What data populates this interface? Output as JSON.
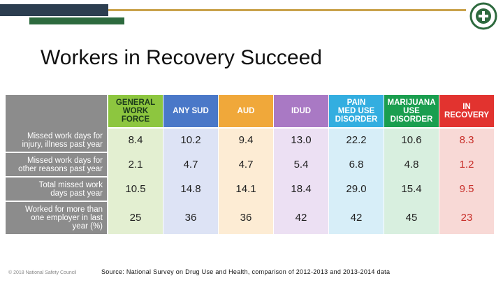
{
  "slide": {
    "title": "Workers in Recovery Succeed",
    "copyright": "© 2018 National Safety Council",
    "source": "Source: National Survey on Drug Use and Health, comparison of 2012-2013 and 2013-2014 data",
    "logo_text": "NATIONAL SAFETY COUNCIL"
  },
  "colors": {
    "navy": "#2c3e50",
    "green": "#2d6a3e",
    "gold": "#c9a24b",
    "label_panel": "#8c8c8c"
  },
  "table": {
    "columns": [
      {
        "label": "GENERAL\nWORK\nFORCE",
        "head_bg": "#8dc63f",
        "head_fg": "#1b3a1b",
        "body_bg": "#e3efd1"
      },
      {
        "label": "ANY SUD",
        "head_bg": "#4a78c8",
        "head_fg": "#ffffff",
        "body_bg": "#dde3f5"
      },
      {
        "label": "AUD",
        "head_bg": "#f0a83a",
        "head_fg": "#ffffff",
        "body_bg": "#fdecd4"
      },
      {
        "label": "IDUD",
        "head_bg": "#a979c4",
        "head_fg": "#ffffff",
        "body_bg": "#ece0f3"
      },
      {
        "label": "PAIN\nMED USE\nDISORDER",
        "head_bg": "#33aee0",
        "head_fg": "#ffffff",
        "body_bg": "#d7eef8"
      },
      {
        "label": "MARIJUANA\nUSE\nDISORDER",
        "head_bg": "#1a9e4f",
        "head_fg": "#ffffff",
        "body_bg": "#d8efdf"
      },
      {
        "label": "IN\nRECOVERY",
        "head_bg": "#e2332f",
        "head_fg": "#ffffff",
        "body_bg": "#f8d9d6"
      }
    ],
    "rows": [
      {
        "label": "Missed work days for\ninjury, illness past year",
        "values": [
          "8.4",
          "10.2",
          "9.4",
          "13.0",
          "22.2",
          "10.6",
          "8.3"
        ]
      },
      {
        "label": "Missed work days for\nother reasons past year",
        "values": [
          "2.1",
          "4.7",
          "4.7",
          "5.4",
          "6.8",
          "4.8",
          "1.2"
        ]
      },
      {
        "label": "Total missed work\ndays past year",
        "values": [
          "10.5",
          "14.8",
          "14.1",
          "18.4",
          "29.0",
          "15.4",
          "9.5"
        ]
      },
      {
        "label": "Worked for more than\none employer in last\nyear (%)",
        "values": [
          "25",
          "36",
          "36",
          "42",
          "42",
          "45",
          "23"
        ]
      }
    ]
  }
}
